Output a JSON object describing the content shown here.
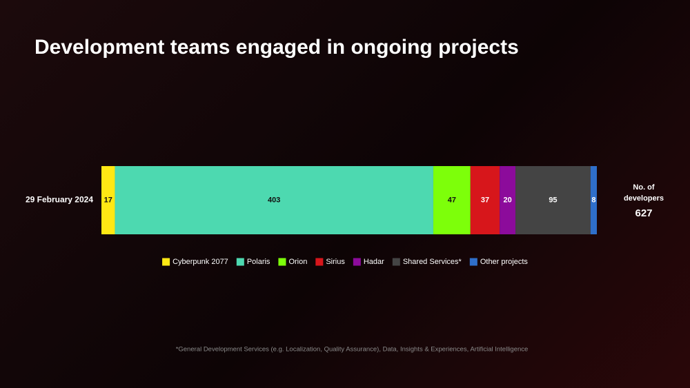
{
  "chart_data": {
    "type": "stacked-bar-horizontal",
    "title": "Development teams engaged in ongoing projects",
    "categories": [
      "29 February 2024"
    ],
    "series": [
      {
        "name": "Cyberpunk 2077",
        "color": "#ffe814",
        "values": [
          17
        ]
      },
      {
        "name": "Polaris",
        "color": "#4dd9b0",
        "values": [
          403
        ]
      },
      {
        "name": "Orion",
        "color": "#7dff0a",
        "values": [
          47
        ]
      },
      {
        "name": "Sirius",
        "color": "#d7161b",
        "values": [
          37
        ]
      },
      {
        "name": "Hadar",
        "color": "#8c0b9b",
        "values": [
          20
        ]
      },
      {
        "name": "Shared Services*",
        "color": "#444444",
        "values": [
          95
        ]
      },
      {
        "name": "Other projects",
        "color": "#2f6fca",
        "values": [
          8
        ]
      }
    ],
    "xlim": [
      0,
      627
    ],
    "total": {
      "label": "No. of developers",
      "value": 627
    },
    "footnote": "*General Development Services (e.g. Localization, Quality Assurance), Data, Insights & Experiences, Artificial Intelligence",
    "legend": "bottom"
  }
}
